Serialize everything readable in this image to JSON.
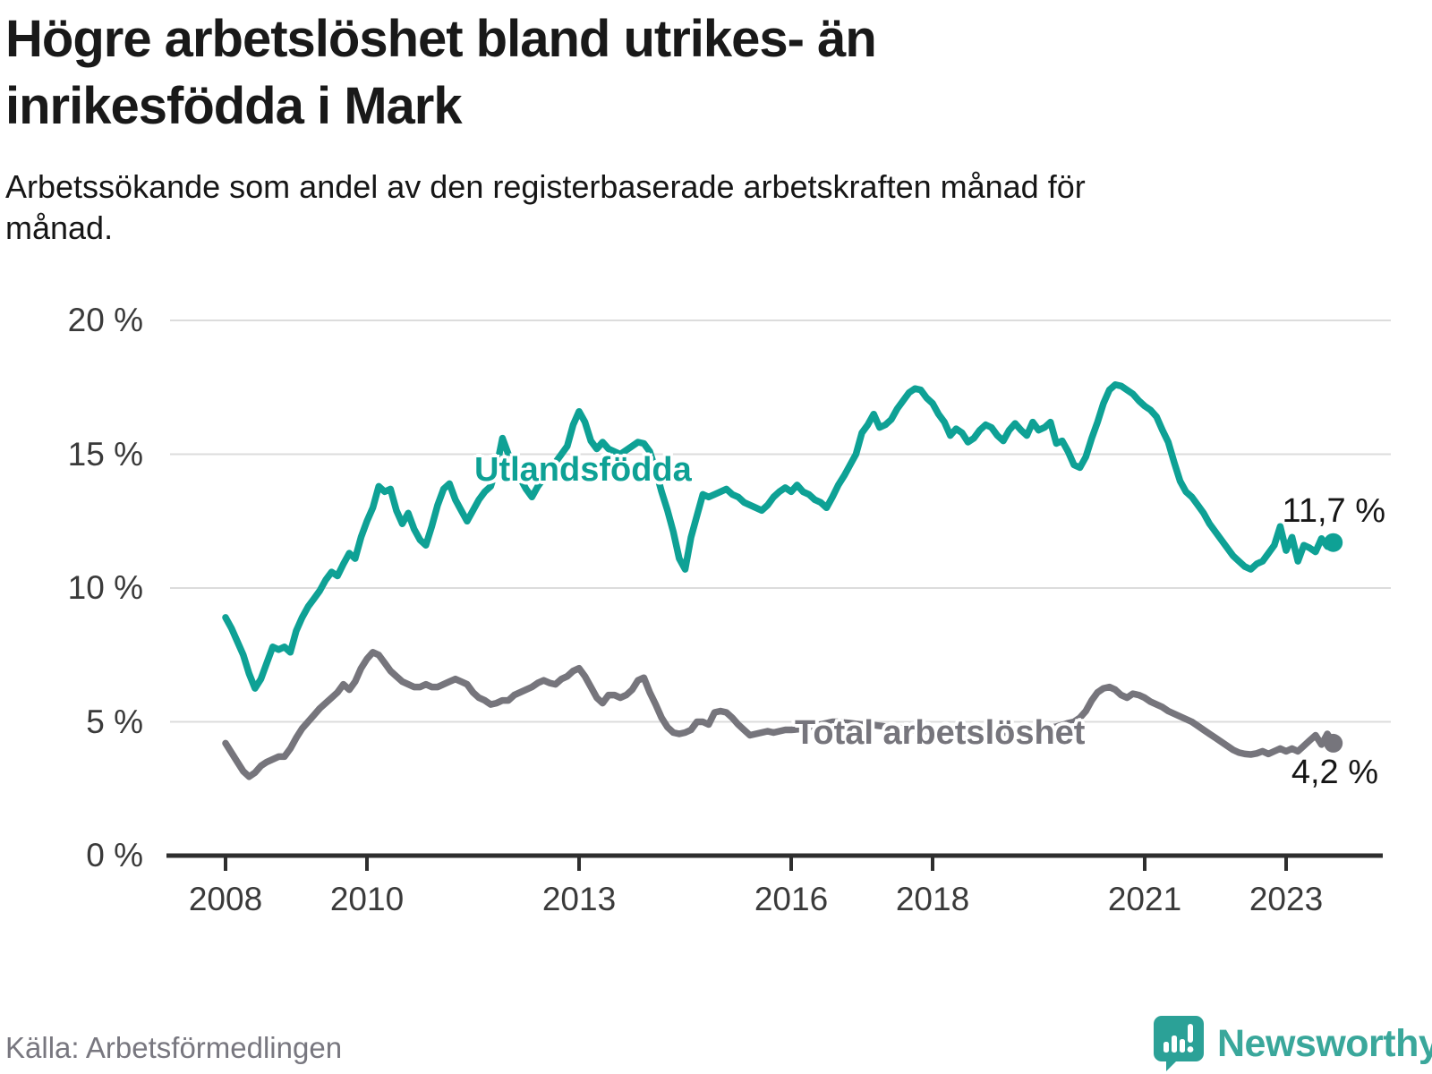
{
  "header": {
    "title": "Högre arbetslöshet bland utrikes- än inrikesfödda i Mark",
    "subtitle": "Arbetssökande som andel av den registerbaserade arbetskraften månad för månad."
  },
  "footer": {
    "source": "Källa: Arbetsförmedlingen",
    "brand": "Newsworthy"
  },
  "colors": {
    "teal": "#0ea195",
    "gray": "#76757c",
    "grid": "#dcdcdc",
    "axis": "#2e2e2e",
    "axis_text": "#3a3a3a",
    "annotation_text": "#161616",
    "logo_teal": "#2ba197"
  },
  "chart_data": {
    "type": "line",
    "title": "Högre arbetslöshet bland utrikes- än inrikesfödda i Mark",
    "subtitle": "Arbetssökande som andel av den registerbaserade arbetskraften månad för månad.",
    "unit": "%",
    "x_axis": {
      "range_years": [
        2007.2,
        2024.5
      ],
      "ticks": [
        {
          "value": 2008,
          "label": "2008"
        },
        {
          "value": 2010,
          "label": "2010"
        },
        {
          "value": 2013,
          "label": "2013"
        },
        {
          "value": 2016,
          "label": "2016"
        },
        {
          "value": 2018,
          "label": "2018"
        },
        {
          "value": 2021,
          "label": "2021"
        },
        {
          "value": 2023,
          "label": "2023"
        }
      ]
    },
    "y_axis": {
      "range": [
        0,
        20
      ],
      "gridlines": [
        5,
        10,
        15,
        20
      ],
      "ticks": [
        {
          "value": 0,
          "label": "0 %"
        },
        {
          "value": 5,
          "label": "5 %"
        },
        {
          "value": 10,
          "label": "10 %"
        },
        {
          "value": 15,
          "label": "15 %"
        },
        {
          "value": 20,
          "label": "20 %"
        }
      ]
    },
    "series": [
      {
        "id": "utlandsfodda",
        "name": "Utlandsfödda",
        "color": "#0ea195",
        "end_label": "11,7 %",
        "end_value": 11.7,
        "start_year": 2008,
        "frequency": "monthly",
        "values": [
          8.9,
          8.5,
          8.0,
          7.5,
          6.8,
          6.25,
          6.6,
          7.2,
          7.8,
          7.7,
          7.8,
          7.6,
          8.4,
          8.9,
          9.3,
          9.6,
          9.9,
          10.3,
          10.6,
          10.45,
          10.9,
          11.3,
          11.1,
          11.9,
          12.5,
          13.0,
          13.8,
          13.6,
          13.7,
          12.9,
          12.4,
          12.8,
          12.2,
          11.8,
          11.6,
          12.3,
          13.1,
          13.7,
          13.9,
          13.3,
          12.9,
          12.5,
          12.9,
          13.3,
          13.6,
          13.8,
          14.5,
          15.6,
          15.0,
          14.6,
          14.1,
          13.7,
          13.4,
          13.8,
          14.1,
          14.4,
          14.7,
          15.0,
          15.3,
          16.1,
          16.6,
          16.2,
          15.5,
          15.2,
          15.45,
          15.2,
          15.1,
          15.0,
          15.15,
          15.3,
          15.45,
          15.4,
          15.1,
          14.4,
          13.6,
          12.9,
          12.1,
          11.1,
          10.7,
          11.9,
          12.7,
          13.5,
          13.4,
          13.5,
          13.6,
          13.7,
          13.5,
          13.4,
          13.2,
          13.1,
          13.0,
          12.9,
          13.1,
          13.4,
          13.6,
          13.75,
          13.6,
          13.85,
          13.6,
          13.5,
          13.3,
          13.2,
          13.0,
          13.4,
          13.85,
          14.2,
          14.6,
          15.0,
          15.8,
          16.1,
          16.5,
          16.0,
          16.1,
          16.3,
          16.7,
          17.0,
          17.3,
          17.45,
          17.4,
          17.1,
          16.9,
          16.5,
          16.2,
          15.7,
          15.95,
          15.8,
          15.45,
          15.6,
          15.9,
          16.1,
          16.0,
          15.7,
          15.5,
          15.9,
          16.15,
          15.9,
          15.7,
          16.2,
          15.9,
          16.0,
          16.2,
          15.4,
          15.5,
          15.1,
          14.6,
          14.5,
          14.9,
          15.6,
          16.2,
          16.9,
          17.4,
          17.6,
          17.55,
          17.4,
          17.25,
          17.0,
          16.8,
          16.65,
          16.4,
          15.9,
          15.45,
          14.7,
          14.0,
          13.6,
          13.4,
          13.1,
          12.8,
          12.4,
          12.1,
          11.8,
          11.5,
          11.2,
          11.0,
          10.8,
          10.7,
          10.9,
          11.0,
          11.3,
          11.6,
          12.3,
          11.4,
          11.9,
          11.0,
          11.6,
          11.5,
          11.35,
          11.85,
          11.55,
          11.7
        ]
      },
      {
        "id": "total",
        "name": "Total arbetslöshet",
        "color": "#76757c",
        "end_label": "4,2 %",
        "end_value": 4.2,
        "start_year": 2008,
        "frequency": "monthly",
        "values": [
          4.2,
          3.85,
          3.5,
          3.15,
          2.95,
          3.1,
          3.35,
          3.5,
          3.6,
          3.7,
          3.7,
          4.0,
          4.4,
          4.75,
          5.0,
          5.25,
          5.5,
          5.7,
          5.9,
          6.1,
          6.4,
          6.2,
          6.5,
          7.0,
          7.35,
          7.6,
          7.5,
          7.2,
          6.9,
          6.7,
          6.5,
          6.4,
          6.3,
          6.3,
          6.4,
          6.3,
          6.3,
          6.4,
          6.5,
          6.6,
          6.5,
          6.4,
          6.1,
          5.9,
          5.8,
          5.65,
          5.7,
          5.8,
          5.8,
          6.0,
          6.1,
          6.2,
          6.3,
          6.45,
          6.55,
          6.45,
          6.4,
          6.6,
          6.7,
          6.9,
          7.0,
          6.7,
          6.3,
          5.9,
          5.7,
          6.0,
          6.0,
          5.9,
          6.0,
          6.2,
          6.55,
          6.65,
          6.1,
          5.65,
          5.15,
          4.8,
          4.6,
          4.55,
          4.6,
          4.7,
          5.0,
          5.0,
          4.9,
          5.35,
          5.4,
          5.35,
          5.15,
          4.9,
          4.7,
          4.5,
          4.55,
          4.6,
          4.65,
          4.6,
          4.65,
          4.7,
          4.7,
          4.72,
          4.75,
          4.8,
          4.85,
          4.9,
          4.95,
          5.0,
          5.0,
          4.97,
          4.95,
          4.92,
          4.9,
          4.9,
          4.88,
          4.85,
          4.82,
          4.8,
          4.78,
          4.75,
          4.72,
          4.7,
          4.68,
          4.65,
          4.62,
          4.6,
          4.57,
          4.55,
          4.52,
          4.5,
          4.5,
          4.5,
          4.52,
          4.55,
          4.57,
          4.6,
          4.6,
          4.6,
          4.62,
          4.65,
          4.68,
          4.7,
          4.72,
          4.75,
          4.78,
          4.82,
          4.88,
          4.95,
          5.0,
          5.15,
          5.4,
          5.8,
          6.1,
          6.25,
          6.3,
          6.2,
          6.0,
          5.9,
          6.05,
          6.0,
          5.9,
          5.75,
          5.65,
          5.55,
          5.4,
          5.3,
          5.2,
          5.1,
          5.0,
          4.85,
          4.7,
          4.55,
          4.4,
          4.25,
          4.1,
          3.95,
          3.85,
          3.8,
          3.78,
          3.82,
          3.9,
          3.8,
          3.9,
          4.0,
          3.9,
          4.0,
          3.9,
          4.1,
          4.3,
          4.5,
          4.15,
          4.55,
          4.2
        ]
      }
    ],
    "legend_position": "inline-labels",
    "grid": true
  }
}
